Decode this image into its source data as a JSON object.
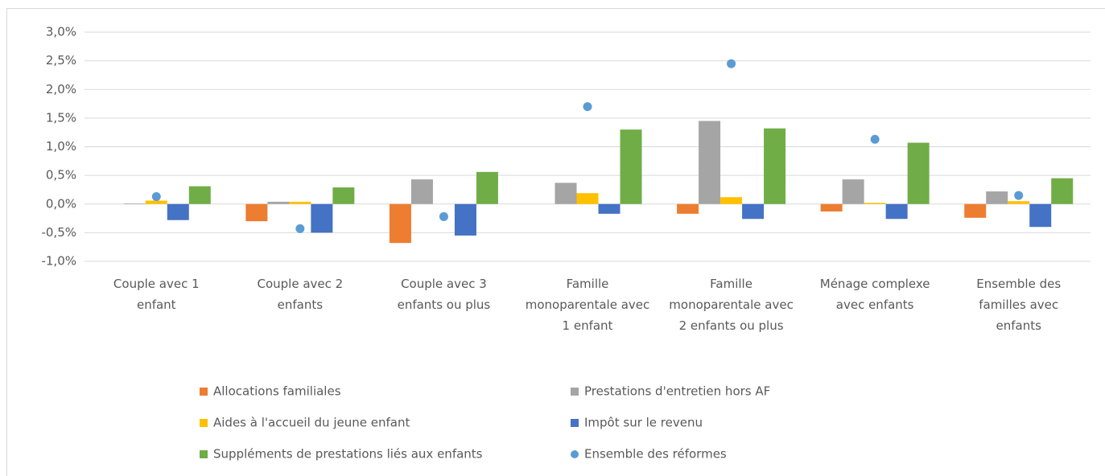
{
  "chart_data": {
    "type": "bar",
    "categories": [
      "Couple avec 1 enfant",
      "Couple avec 2 enfants",
      "Couple avec 3 enfants ou plus",
      "Famille monoparentale avec 1 enfant",
      "Famille monoparentale avec 2 enfants ou plus",
      "Ménage complexe avec enfants",
      "Ensemble des familles avec enfants"
    ],
    "series": [
      {
        "name": "Allocations familiales",
        "color": "#ed7d31",
        "values": [
          0,
          -0.3,
          -0.68,
          0,
          -0.17,
          -0.13,
          -0.24
        ]
      },
      {
        "name": "Prestations d'entretien hors AF",
        "color": "#a5a5a5",
        "values": [
          0.01,
          0.04,
          0.43,
          0.37,
          1.45,
          0.43,
          0.22
        ]
      },
      {
        "name": "Aides à l'accueil du jeune enfant",
        "color": "#ffc000",
        "values": [
          0.06,
          0.04,
          0,
          0.19,
          0.12,
          0.02,
          0.05
        ]
      },
      {
        "name": "Impôt sur le revenu",
        "color": "#4472c4",
        "values": [
          -0.28,
          -0.5,
          -0.55,
          -0.17,
          -0.26,
          -0.26,
          -0.4
        ]
      },
      {
        "name": "Suppléments de prestations liés aux enfants",
        "color": "#70ad47",
        "values": [
          0.31,
          0.29,
          0.56,
          1.3,
          1.32,
          1.07,
          0.45
        ]
      },
      {
        "name": "Ensemble des réformes",
        "color": "#5b9bd5",
        "type": "scatter",
        "values": [
          0.13,
          -0.43,
          -0.22,
          1.7,
          2.45,
          1.13,
          0.15
        ]
      }
    ],
    "ylim": [
      -1.0,
      3.0
    ],
    "yticks": [
      {
        "value": -1.0,
        "label": "-1,0%"
      },
      {
        "value": -0.5,
        "label": "-0,5%"
      },
      {
        "value": 0,
        "label": "0,0%"
      },
      {
        "value": 0.5,
        "label": "0,5%"
      },
      {
        "value": 1.0,
        "label": "1,0%"
      },
      {
        "value": 1.5,
        "label": "1,5%"
      },
      {
        "value": 2.0,
        "label": "2,0%"
      },
      {
        "value": 2.5,
        "label": "2,5%"
      },
      {
        "value": 3.0,
        "label": "3,0%"
      }
    ],
    "grid": true,
    "legend": "bottom"
  }
}
